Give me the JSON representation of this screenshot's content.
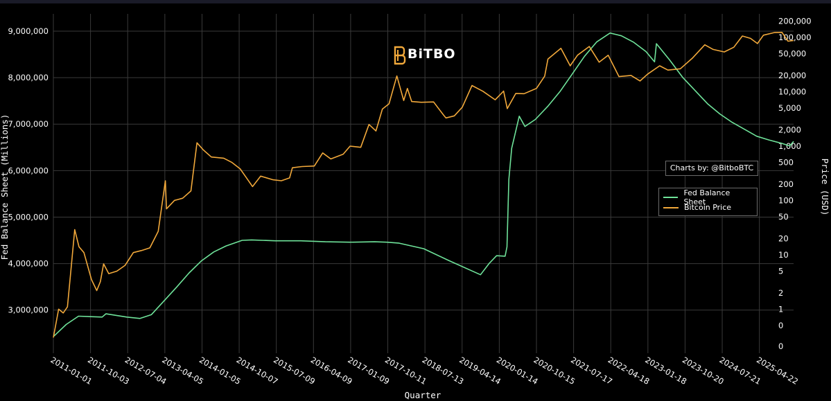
{
  "logo": {
    "text": "BiTBO"
  },
  "credit": "Charts by: @BitboBTC",
  "chart_data": {
    "type": "line",
    "title": "",
    "xlabel": "Quarter",
    "ylabel_left": "Fed Balance Sheet (Millions)",
    "ylabel_right": "Price (USD)",
    "x_range": [
      "2011-01-01",
      "2025-12-31"
    ],
    "x_ticks": [
      "2011-01-01",
      "2011-10-03",
      "2012-07-04",
      "2013-04-05",
      "2014-01-05",
      "2014-10-07",
      "2015-07-09",
      "2016-04-09",
      "2017-01-09",
      "2017-10-11",
      "2018-07-13",
      "2019-04-14",
      "2020-01-14",
      "2020-10-15",
      "2021-07-17",
      "2022-04-18",
      "2023-01-18",
      "2023-10-20",
      "2024-07-21",
      "2025-04-22"
    ],
    "y_left": {
      "range": [
        2400000,
        9000000
      ],
      "ticks": [
        3000000,
        4000000,
        5000000,
        6000000,
        7000000,
        8000000,
        9000000
      ],
      "tick_labels": [
        "3,000,000",
        "4,000,000",
        "5,000,000",
        "6,000,000",
        "7,000,000",
        "8,000,000",
        "9,000,000"
      ]
    },
    "y_right": {
      "scale": "log",
      "range": [
        0.06,
        200000
      ],
      "ticks": [
        0.1,
        0.5,
        1,
        2,
        5,
        10,
        20,
        50,
        100,
        200,
        500,
        1000,
        2000,
        5000,
        10000,
        20000,
        50000,
        100000,
        200000
      ],
      "tick_labels": [
        "0",
        "0",
        "1",
        "2",
        "5",
        "10",
        "20",
        "50",
        "100",
        "200",
        "500",
        "1,000",
        "2,000",
        "5,000",
        "10,000",
        "20,000",
        "50,000",
        "100,000",
        "200,000"
      ]
    },
    "grid": true,
    "legend_position": "right",
    "series": [
      {
        "name": "Fed Balance Sheet",
        "axis": "left",
        "color": "#6fe39a",
        "points": [
          [
            "2011-01-05",
            2440000
          ],
          [
            "2011-04-06",
            2690000
          ],
          [
            "2011-07-06",
            2870000
          ],
          [
            "2011-12-28",
            2850000
          ],
          [
            "2012-01-25",
            2920000
          ],
          [
            "2012-06-27",
            2850000
          ],
          [
            "2012-10-03",
            2820000
          ],
          [
            "2012-12-26",
            2900000
          ],
          [
            "2013-04-03",
            3210000
          ],
          [
            "2013-07-03",
            3500000
          ],
          [
            "2013-10-02",
            3800000
          ],
          [
            "2014-01-01",
            4060000
          ],
          [
            "2014-04-02",
            4250000
          ],
          [
            "2014-07-02",
            4380000
          ],
          [
            "2014-10-29",
            4500000
          ],
          [
            "2015-01-07",
            4510000
          ],
          [
            "2015-07-01",
            4490000
          ],
          [
            "2016-01-06",
            4490000
          ],
          [
            "2016-07-06",
            4470000
          ],
          [
            "2017-01-04",
            4460000
          ],
          [
            "2017-07-05",
            4470000
          ],
          [
            "2017-10-04",
            4460000
          ],
          [
            "2018-01-03",
            4440000
          ],
          [
            "2018-07-04",
            4320000
          ],
          [
            "2019-01-02",
            4070000
          ],
          [
            "2019-08-28",
            3760000
          ],
          [
            "2019-10-30",
            4000000
          ],
          [
            "2019-12-25",
            4170000
          ],
          [
            "2020-02-26",
            4160000
          ],
          [
            "2020-03-11",
            4360000
          ],
          [
            "2020-03-25",
            5810000
          ],
          [
            "2020-04-15",
            6480000
          ],
          [
            "2020-06-10",
            7170000
          ],
          [
            "2020-07-22",
            6950000
          ],
          [
            "2020-10-07",
            7100000
          ],
          [
            "2021-01-06",
            7380000
          ],
          [
            "2021-04-07",
            7700000
          ],
          [
            "2021-07-07",
            8080000
          ],
          [
            "2021-10-06",
            8460000
          ],
          [
            "2022-01-05",
            8770000
          ],
          [
            "2022-04-13",
            8960000
          ],
          [
            "2022-07-06",
            8900000
          ],
          [
            "2022-10-05",
            8760000
          ],
          [
            "2023-01-04",
            8560000
          ],
          [
            "2023-03-08",
            8340000
          ],
          [
            "2023-03-22",
            8730000
          ],
          [
            "2023-06-28",
            8380000
          ],
          [
            "2023-10-04",
            8000000
          ],
          [
            "2024-01-03",
            7720000
          ],
          [
            "2024-04-03",
            7440000
          ],
          [
            "2024-07-03",
            7220000
          ],
          [
            "2024-10-02",
            7040000
          ],
          [
            "2025-01-01",
            6890000
          ],
          [
            "2025-04-02",
            6740000
          ],
          [
            "2025-07-02",
            6660000
          ],
          [
            "2025-10-01",
            6590000
          ],
          [
            "2025-12-03",
            6530000
          ],
          [
            "2025-12-31",
            6630000
          ]
        ]
      },
      {
        "name": "Bitcoin Price",
        "axis": "right",
        "color": "#f2a93b",
        "points": [
          [
            "2011-01-01",
            0.3
          ],
          [
            "2011-02-09",
            1.0
          ],
          [
            "2011-03-15",
            0.85
          ],
          [
            "2011-04-15",
            1.1
          ],
          [
            "2011-05-10",
            5
          ],
          [
            "2011-06-08",
            29
          ],
          [
            "2011-07-10",
            14
          ],
          [
            "2011-08-15",
            11
          ],
          [
            "2011-10-10",
            3.5
          ],
          [
            "2011-11-18",
            2.2
          ],
          [
            "2011-12-15",
            3.2
          ],
          [
            "2012-01-08",
            6.8
          ],
          [
            "2012-02-15",
            4.5
          ],
          [
            "2012-04-15",
            5
          ],
          [
            "2012-06-15",
            6.4
          ],
          [
            "2012-08-15",
            11
          ],
          [
            "2012-10-15",
            12
          ],
          [
            "2012-12-15",
            13.4
          ],
          [
            "2013-02-15",
            27
          ],
          [
            "2013-04-09",
            230
          ],
          [
            "2013-04-17",
            70
          ],
          [
            "2013-06-15",
            100
          ],
          [
            "2013-08-15",
            110
          ],
          [
            "2013-10-15",
            150
          ],
          [
            "2013-11-29",
            1150
          ],
          [
            "2014-01-15",
            850
          ],
          [
            "2014-03-15",
            630
          ],
          [
            "2014-06-15",
            600
          ],
          [
            "2014-08-15",
            500
          ],
          [
            "2014-10-15",
            380
          ],
          [
            "2015-01-14",
            180
          ],
          [
            "2015-03-15",
            280
          ],
          [
            "2015-06-15",
            240
          ],
          [
            "2015-08-15",
            230
          ],
          [
            "2015-10-15",
            260
          ],
          [
            "2015-11-05",
            400
          ],
          [
            "2016-01-15",
            420
          ],
          [
            "2016-04-15",
            430
          ],
          [
            "2016-06-16",
            750
          ],
          [
            "2016-08-15",
            580
          ],
          [
            "2016-11-15",
            710
          ],
          [
            "2017-01-05",
            1000
          ],
          [
            "2017-03-25",
            950
          ],
          [
            "2017-05-25",
            2500
          ],
          [
            "2017-07-15",
            1900
          ],
          [
            "2017-09-01",
            4800
          ],
          [
            "2017-10-20",
            6000
          ],
          [
            "2017-12-17",
            19500
          ],
          [
            "2018-02-06",
            6900
          ],
          [
            "2018-03-05",
            11500
          ],
          [
            "2018-04-06",
            6600
          ],
          [
            "2018-06-15",
            6400
          ],
          [
            "2018-09-15",
            6500
          ],
          [
            "2018-11-25",
            3800
          ],
          [
            "2018-12-15",
            3300
          ],
          [
            "2019-02-15",
            3600
          ],
          [
            "2019-04-15",
            5200
          ],
          [
            "2019-06-26",
            13000
          ],
          [
            "2019-09-15",
            10200
          ],
          [
            "2019-12-15",
            7100
          ],
          [
            "2020-02-15",
            10300
          ],
          [
            "2020-03-13",
            4900
          ],
          [
            "2020-05-15",
            9300
          ],
          [
            "2020-07-15",
            9200
          ],
          [
            "2020-10-15",
            11500
          ],
          [
            "2020-12-15",
            19400
          ],
          [
            "2021-01-08",
            40000
          ],
          [
            "2021-04-14",
            63000
          ],
          [
            "2021-06-22",
            30000
          ],
          [
            "2021-08-15",
            47000
          ],
          [
            "2021-11-10",
            68000
          ],
          [
            "2022-01-22",
            35000
          ],
          [
            "2022-03-30",
            47000
          ],
          [
            "2022-06-18",
            19000
          ],
          [
            "2022-09-15",
            20000
          ],
          [
            "2022-11-21",
            15800
          ],
          [
            "2023-01-15",
            21000
          ],
          [
            "2023-04-15",
            30000
          ],
          [
            "2023-06-15",
            25000
          ],
          [
            "2023-09-15",
            26500
          ],
          [
            "2023-12-15",
            42000
          ],
          [
            "2024-03-14",
            73000
          ],
          [
            "2024-05-15",
            60000
          ],
          [
            "2024-08-05",
            54000
          ],
          [
            "2024-10-15",
            66000
          ],
          [
            "2024-12-17",
            106000
          ],
          [
            "2025-02-15",
            96000
          ],
          [
            "2025-04-08",
            77000
          ],
          [
            "2025-05-22",
            110000
          ],
          [
            "2025-08-14",
            123000
          ],
          [
            "2025-10-06",
            124000
          ],
          [
            "2025-11-20",
            85000
          ],
          [
            "2025-12-31",
            88000
          ]
        ]
      }
    ]
  }
}
